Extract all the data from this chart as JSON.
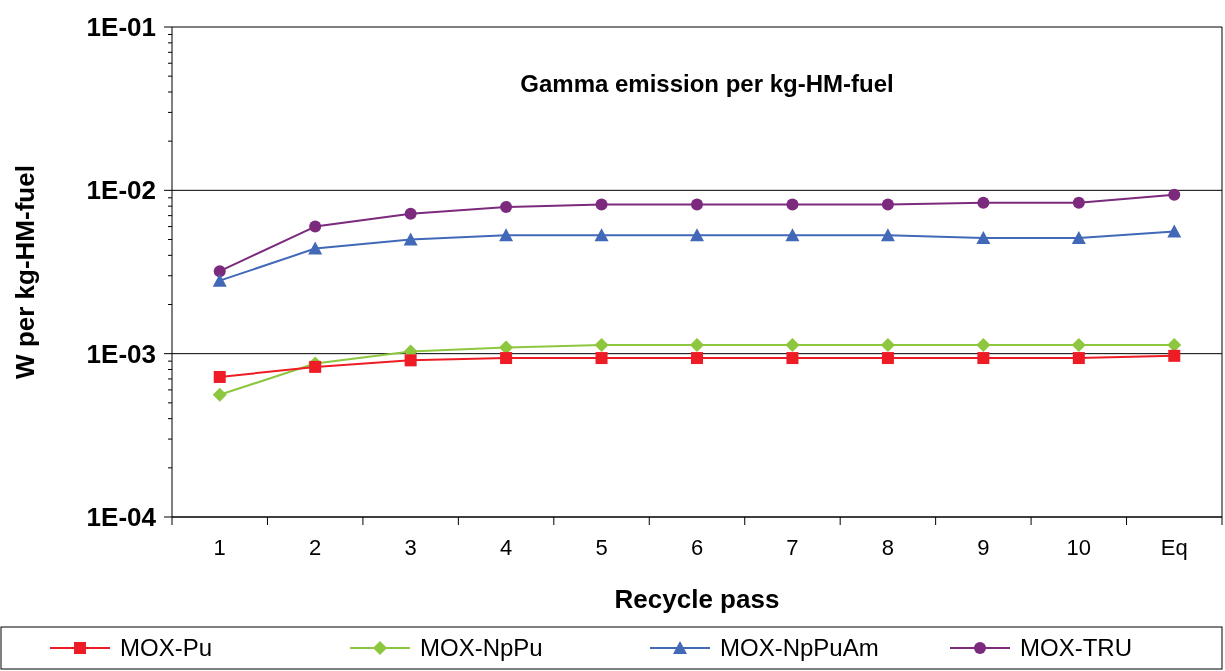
{
  "chart_data": {
    "type": "line",
    "title": "Gamma emission per kg-HM-fuel",
    "xlabel": "Recycle pass",
    "ylabel": "W per kg-HM-fuel",
    "categories": [
      "1",
      "2",
      "3",
      "4",
      "5",
      "6",
      "7",
      "8",
      "9",
      "10",
      "Eq"
    ],
    "log": true,
    "ylim": [
      0.0001,
      0.1
    ],
    "yticks": [
      {
        "value": 0.0001,
        "label": "1E-04"
      },
      {
        "value": 0.001,
        "label": "1E-03"
      },
      {
        "value": 0.01,
        "label": "1E-02"
      },
      {
        "value": 0.1,
        "label": "1E-01"
      }
    ],
    "grid": "y",
    "legend": "bottom",
    "series": [
      {
        "name": "MOX-Pu",
        "color": "#ee1c25",
        "marker": "square",
        "values": [
          0.00072,
          0.00083,
          0.00091,
          0.00094,
          0.00094,
          0.00094,
          0.00094,
          0.00094,
          0.00094,
          0.00094,
          0.00097
        ]
      },
      {
        "name": "MOX-NpPu",
        "color": "#8dc63f",
        "marker": "diamond",
        "values": [
          0.00056,
          0.00087,
          0.00103,
          0.00109,
          0.00113,
          0.00113,
          0.00113,
          0.00113,
          0.00113,
          0.00113,
          0.00113
        ]
      },
      {
        "name": "MOX-NpPuAm",
        "color": "#4169b8",
        "marker": "triangle",
        "values": [
          0.0028,
          0.0044,
          0.005,
          0.0053,
          0.0053,
          0.0053,
          0.0053,
          0.0053,
          0.0051,
          0.0051,
          0.0056
        ]
      },
      {
        "name": "MOX-TRU",
        "color": "#7b2a7e",
        "marker": "circle",
        "values": [
          0.0032,
          0.006,
          0.0072,
          0.0079,
          0.0082,
          0.0082,
          0.0082,
          0.0082,
          0.0084,
          0.0084,
          0.0094
        ]
      }
    ]
  }
}
